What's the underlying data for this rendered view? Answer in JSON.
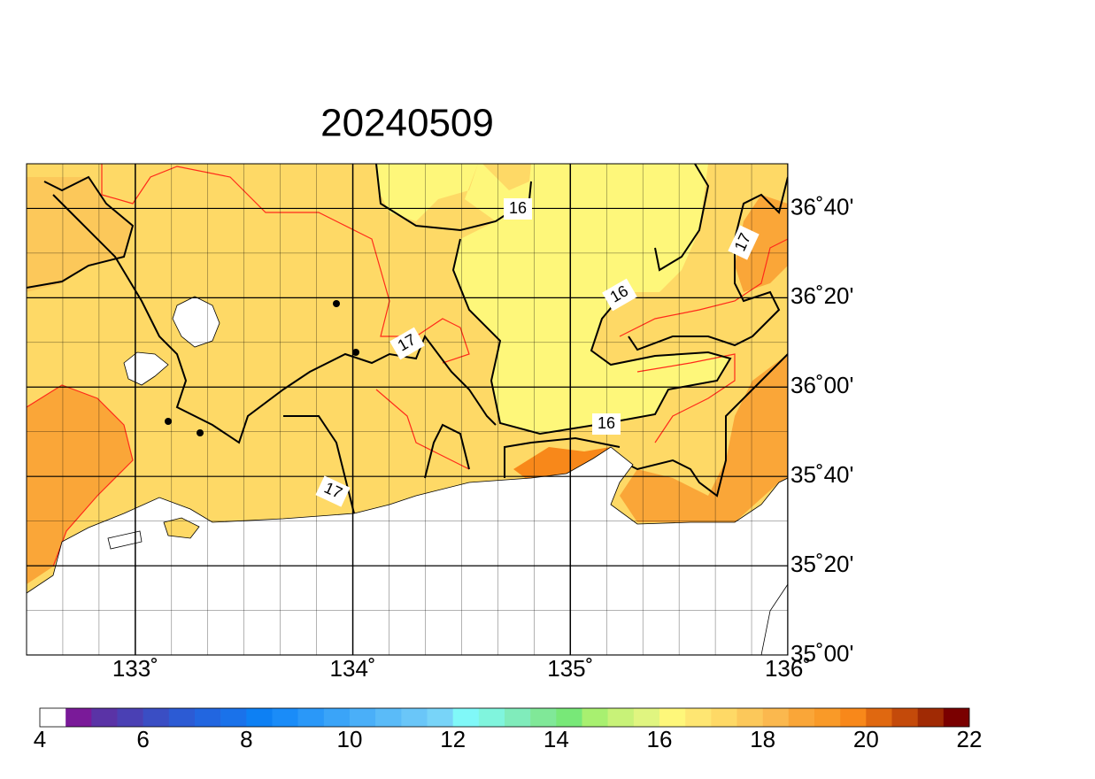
{
  "title": "20240509",
  "map": {
    "xlim": [
      132.5,
      136
    ],
    "ylim": [
      35,
      36.8333
    ],
    "xticks": [
      {
        "value": 133,
        "label": "133˚"
      },
      {
        "value": 134,
        "label": "134˚"
      },
      {
        "value": 135,
        "label": "135˚"
      },
      {
        "value": 136,
        "label": "136˚"
      }
    ],
    "yticks": [
      {
        "value": 35,
        "label": "35˚00'"
      },
      {
        "value": 35.3333,
        "label": "35˚20'"
      },
      {
        "value": 35.6667,
        "label": "35˚40'"
      },
      {
        "value": 36,
        "label": "36˚00'"
      },
      {
        "value": 36.3333,
        "label": "36˚20'"
      },
      {
        "value": 36.6667,
        "label": "36˚40'"
      }
    ],
    "contour_labels": [
      "16",
      "16",
      "16",
      "17",
      "17",
      "17"
    ]
  },
  "colorbar": {
    "range": [
      4,
      22
    ],
    "ticks": [
      4,
      6,
      8,
      10,
      12,
      14,
      16,
      18,
      20,
      22
    ],
    "colors": [
      "#ffffff",
      "#7a1a99",
      "#5a33a6",
      "#4a40b4",
      "#3a4ec4",
      "#2c5bd4",
      "#2266e0",
      "#1a72ea",
      "#0d80f4",
      "#1a8cf8",
      "#2a98f8",
      "#3aa4f8",
      "#4aaff8",
      "#5abbf8",
      "#6ac6f8",
      "#78d4f8",
      "#80f8f8",
      "#80f5dd",
      "#80ecbb",
      "#80e898",
      "#78e878",
      "#a8f070",
      "#c8f278",
      "#e0f580",
      "#fef77a",
      "#fee672",
      "#fed966",
      "#fcc85a",
      "#fbb84e",
      "#faa638",
      "#f99a28",
      "#f8881a",
      "#e06810",
      "#c44a0a",
      "#a02a04",
      "#7a0000"
    ]
  }
}
